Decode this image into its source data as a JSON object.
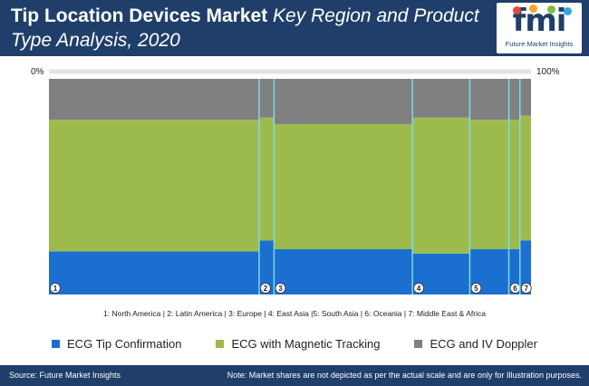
{
  "header": {
    "title_bold": "Tip Location Devices Market",
    "title_rest": "Key Region and Product Type Analysis, 2020"
  },
  "logo": {
    "mark": "fmi",
    "tagline": "Future Market Insights",
    "dot_colors": [
      "#e8473c",
      "#f5a623",
      "#7fbf3f",
      "#2fa8e0"
    ]
  },
  "axis": {
    "left_label": "0%",
    "right_label": "100%"
  },
  "chart_data": {
    "type": "bar",
    "subtype": "marimekko",
    "categories": [
      "1",
      "2",
      "3",
      "4",
      "5",
      "6",
      "7"
    ],
    "widths": [
      43.6,
      3.1,
      28.7,
      11.9,
      8.1,
      2.3,
      2.3
    ],
    "series": [
      {
        "name": "ECG Tip Confirmation",
        "color": "#1b6fcf",
        "values": [
          20,
          25,
          21,
          19,
          21,
          21,
          25
        ]
      },
      {
        "name": "ECG with Magnetic Tracking",
        "color": "#9dbb4c",
        "values": [
          61,
          57,
          58,
          63,
          60,
          60,
          58
        ]
      },
      {
        "name": "ECG and IV Doppler",
        "color": "#808080",
        "values": [
          19,
          18,
          21,
          18,
          19,
          19,
          17
        ]
      }
    ],
    "x_range": [
      0,
      100
    ],
    "y_range": [
      0,
      100
    ],
    "divider_color": "#7fd8ec"
  },
  "region_key": "1: North America | 2: Latin America  | 3: Europe    | 4: East Asia |5: South Asia  | 6: Oceania  | 7: Middle East & Africa",
  "legend": [
    {
      "label": "ECG Tip Confirmation",
      "color": "#1b6fcf"
    },
    {
      "label": "ECG with Magnetic Tracking",
      "color": "#9dbb4c"
    },
    {
      "label": "ECG and IV Doppler",
      "color": "#808080"
    }
  ],
  "footer": {
    "source": "Source: Future Market Insights",
    "note": "Note: Market shares are not depicted as per the actual scale and are only for Illustration purposes."
  }
}
